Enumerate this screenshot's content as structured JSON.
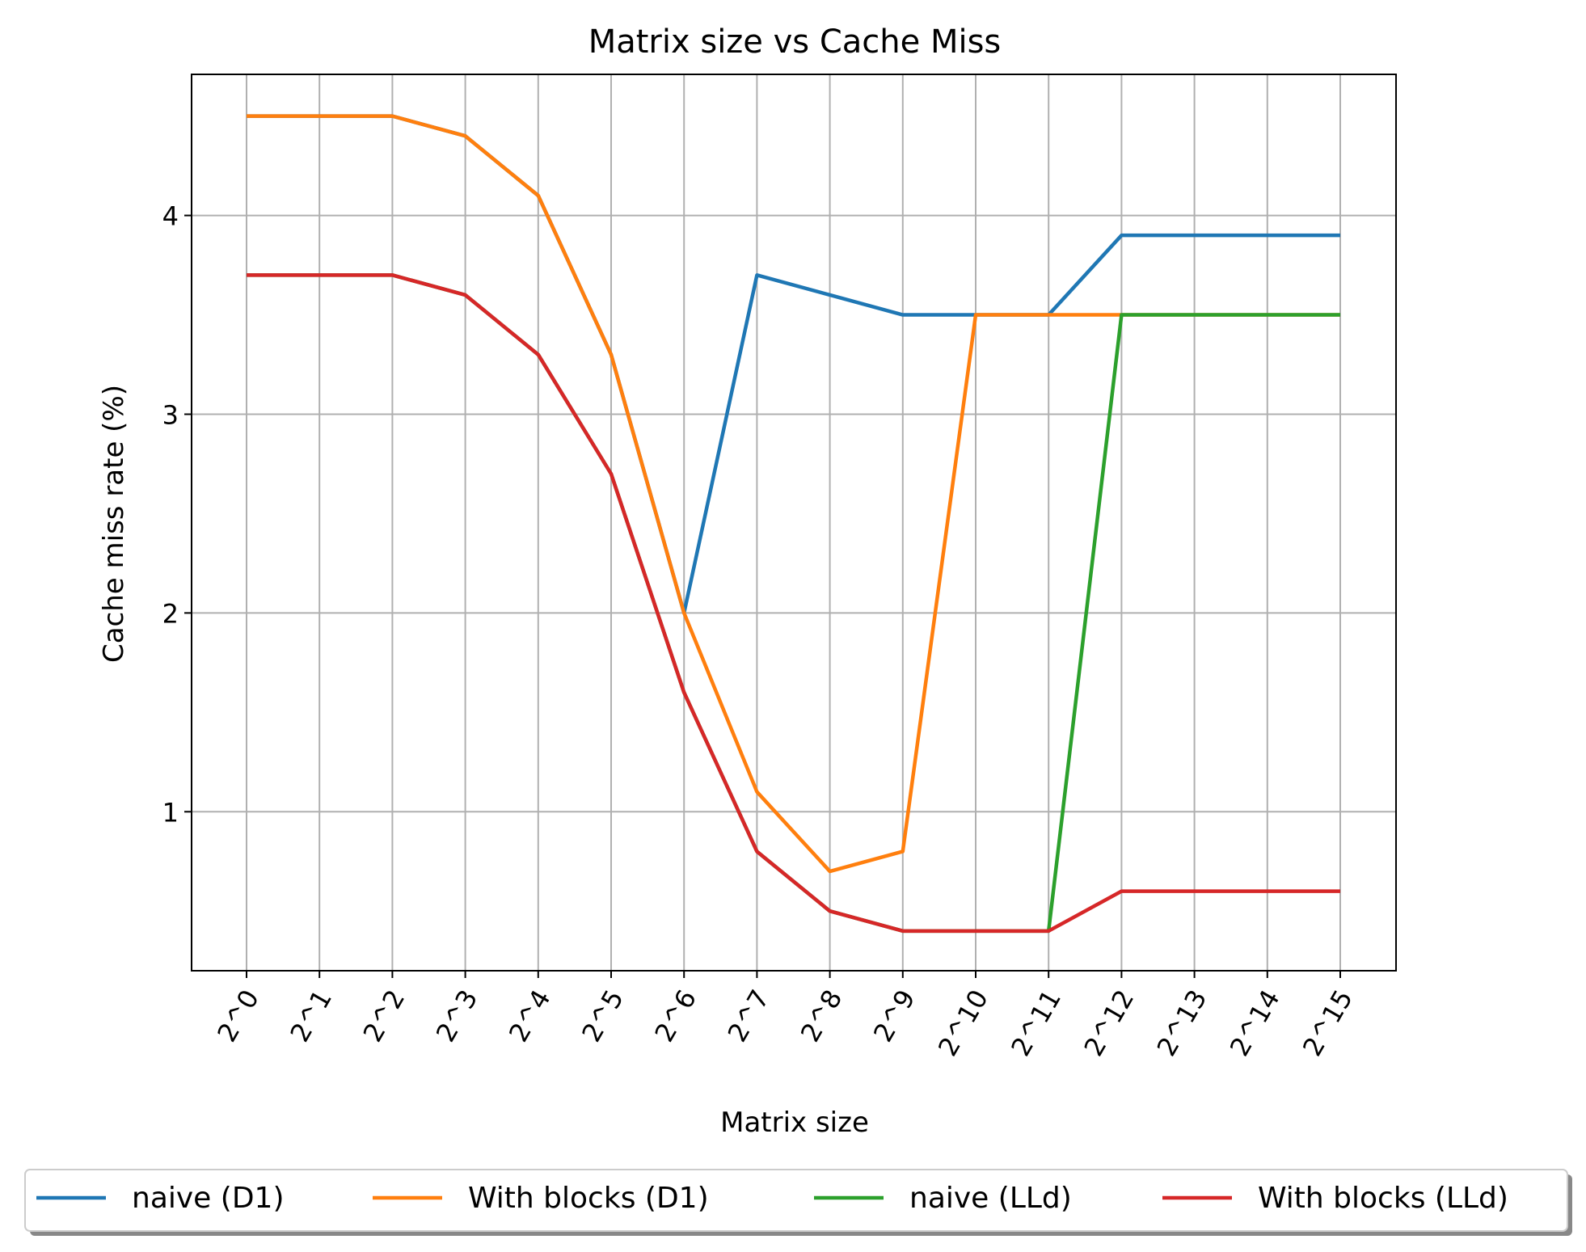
{
  "chart_data": {
    "type": "line",
    "title": "Matrix size vs Cache Miss",
    "xlabel": "Matrix size",
    "ylabel": "Cache miss rate (%)",
    "categories": [
      "2^0",
      "2^1",
      "2^2",
      "2^3",
      "2^4",
      "2^5",
      "2^6",
      "2^7",
      "2^8",
      "2^9",
      "2^10",
      "2^11",
      "2^12",
      "2^13",
      "2^14",
      "2^15"
    ],
    "ylim": [
      0.2,
      4.71
    ],
    "yticks": [
      "1",
      "2",
      "3",
      "4"
    ],
    "grid": true,
    "legend_position": "bottom-center",
    "series": [
      {
        "name": "naive (D1)",
        "color": "#1f77b4",
        "values": [
          4.5,
          4.5,
          4.5,
          4.4,
          4.1,
          3.3,
          2.0,
          3.7,
          3.6,
          3.5,
          3.5,
          3.5,
          3.9,
          3.9,
          3.9,
          3.9
        ]
      },
      {
        "name": "With blocks (D1)",
        "color": "#ff7f0e",
        "values": [
          4.5,
          4.5,
          4.5,
          4.4,
          4.1,
          3.3,
          2.0,
          1.1,
          0.7,
          0.8,
          3.5,
          3.5,
          3.5,
          3.5,
          3.5,
          3.5
        ]
      },
      {
        "name": "naive (LLd)",
        "color": "#2ca02c",
        "values": [
          3.7,
          3.7,
          3.7,
          3.6,
          3.3,
          2.7,
          1.6,
          0.8,
          0.5,
          0.4,
          0.4,
          0.4,
          3.5,
          3.5,
          3.5,
          3.5
        ]
      },
      {
        "name": "With blocks (LLd)",
        "color": "#d62728",
        "values": [
          3.7,
          3.7,
          3.7,
          3.6,
          3.3,
          2.7,
          1.6,
          0.8,
          0.5,
          0.4,
          0.4,
          0.4,
          0.6,
          0.6,
          0.6,
          0.6
        ]
      }
    ]
  }
}
